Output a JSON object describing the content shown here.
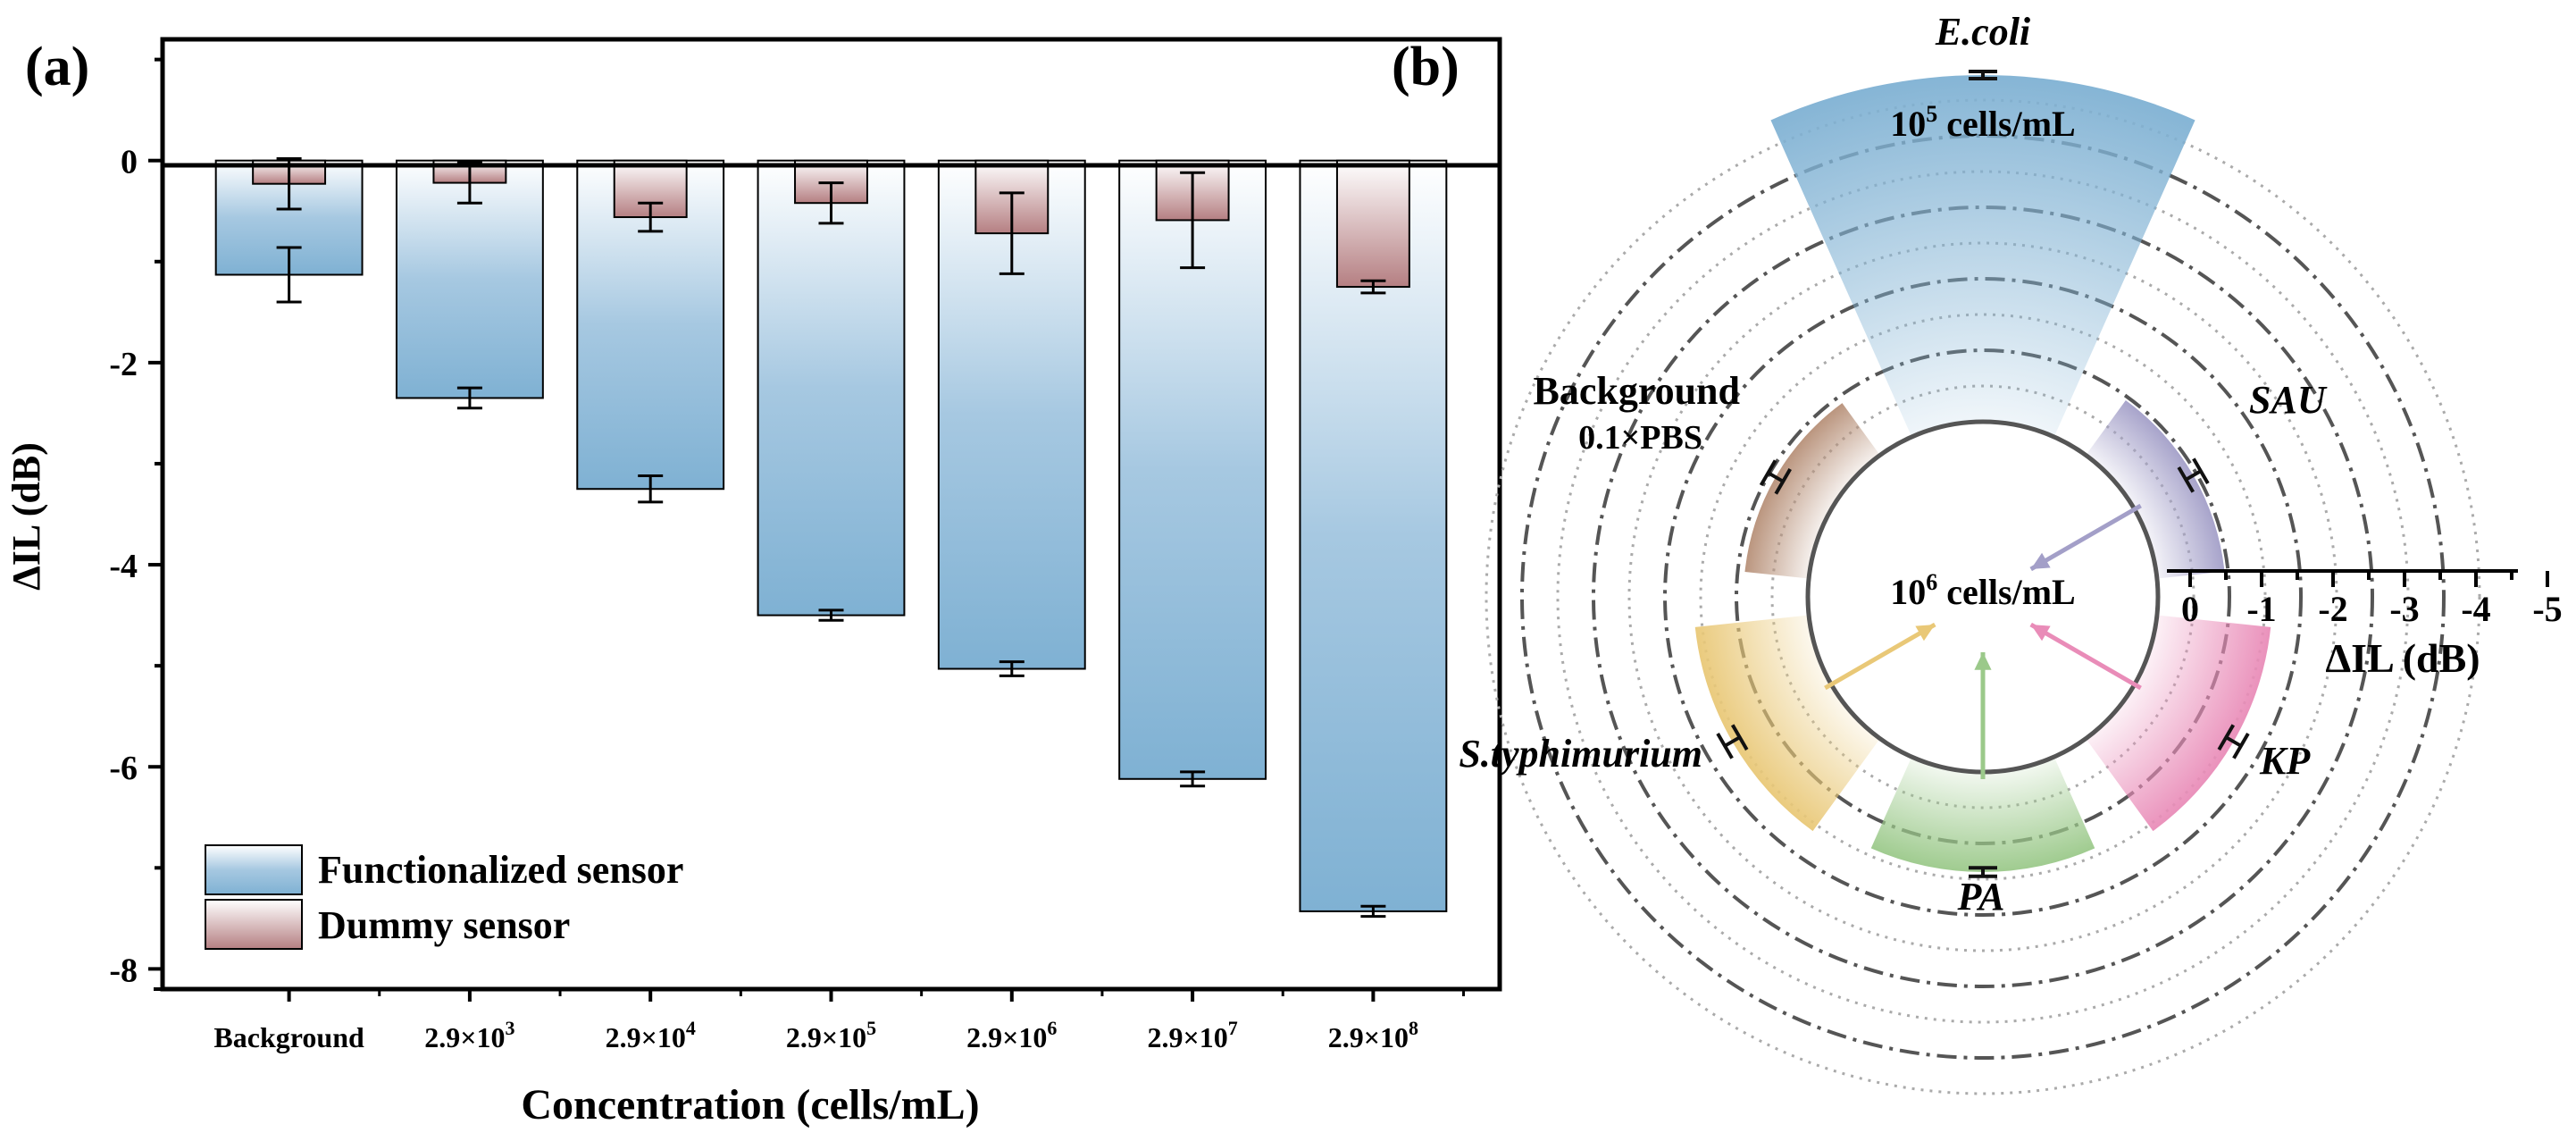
{
  "panels": {
    "a": "(a)",
    "b": "(b)"
  },
  "chart_data": [
    {
      "type": "bar",
      "panel": "(a)",
      "xlabel": "Concentration (cells/mL)",
      "ylabel": "ΔIL (dB)",
      "ylim": [
        -8.2,
        1.2
      ],
      "yticks": [
        0,
        -2,
        -4,
        -6,
        -8
      ],
      "ytick_labels": [
        "0",
        "-2",
        "-4",
        "-6",
        "-8"
      ],
      "categories": [
        {
          "base": "Background",
          "exp": ""
        },
        {
          "base": "2.9×10",
          "exp": "3"
        },
        {
          "base": "2.9×10",
          "exp": "4"
        },
        {
          "base": "2.9×10",
          "exp": "5"
        },
        {
          "base": "2.9×10",
          "exp": "6"
        },
        {
          "base": "2.9×10",
          "exp": "7"
        },
        {
          "base": "2.9×10",
          "exp": "8"
        }
      ],
      "series": [
        {
          "name": "Functionalized sensor",
          "color": "#7fb1d3",
          "values": [
            -1.13,
            -2.35,
            -3.25,
            -4.5,
            -5.03,
            -6.12,
            -7.43
          ],
          "errors": [
            0.27,
            0.1,
            0.13,
            0.05,
            0.07,
            0.07,
            0.05
          ]
        },
        {
          "name": "Dummy sensor",
          "color": "#b57f82",
          "values": [
            -0.23,
            -0.22,
            -0.56,
            -0.42,
            -0.72,
            -0.59,
            -1.25
          ],
          "errors": [
            0.25,
            0.2,
            0.14,
            0.2,
            0.4,
            0.47,
            0.06
          ]
        }
      ],
      "legend_position": "bottom-left"
    },
    {
      "type": "polar-bar",
      "panel": "(b)",
      "axis_label": "ΔIL (dB)",
      "axis_ticks": [
        "0",
        "-1",
        "-2",
        "-3",
        "-4",
        "-5"
      ],
      "rlim": [
        0,
        -5
      ],
      "center_label": {
        "base": "10",
        "exp": "6",
        "unit": " cells/mL"
      },
      "sectors": [
        {
          "label": "E.coli",
          "italic": true,
          "value": -4.85,
          "error": 0.05,
          "color": "#7fb1d3",
          "note": {
            "base": "10",
            "exp": "5",
            "unit": " cells/mL"
          }
        },
        {
          "label": "SAU",
          "italic": true,
          "value": -0.95,
          "error": 0.12,
          "color": "#a39fc8"
        },
        {
          "label": "KP",
          "italic": true,
          "value": -1.6,
          "error": 0.12,
          "color": "#e98cb8"
        },
        {
          "label": "PA",
          "italic": true,
          "value": -1.4,
          "error": 0.06,
          "color": "#9bc98a"
        },
        {
          "label": "S.typhimurium",
          "italic": true,
          "value": -1.6,
          "error": 0.12,
          "color": "#e9c877"
        },
        {
          "label": "Background",
          "italic": false,
          "sublabel": "0.1×PBS",
          "value": -0.9,
          "error": 0.12,
          "color": "#b79078"
        }
      ]
    }
  ]
}
